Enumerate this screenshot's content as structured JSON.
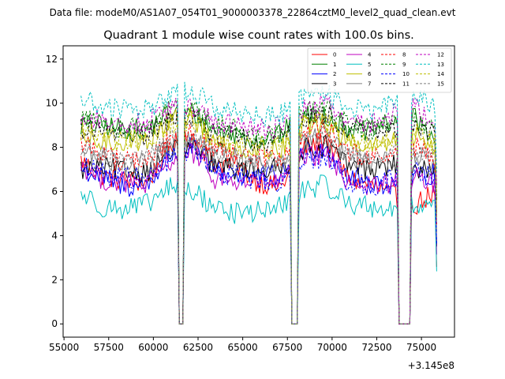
{
  "chart_data": {
    "type": "line",
    "suptitle": "Data file: modeM0/AS1A07_054T01_9000003378_22864cztM0_level2_quad_clean.evt",
    "title": "Quadrant 1 module wise count rates with 100.0s bins.",
    "xlabel": "",
    "ylabel": "",
    "x_offset_label": "+3.145e8",
    "x_range": [
      55950,
      75850
    ],
    "x_step": 100,
    "xlim": [
      54950,
      76850
    ],
    "ylim": [
      -0.6,
      12.6
    ],
    "x_ticks": [
      55000,
      57500,
      60000,
      62500,
      65000,
      67500,
      70000,
      72500,
      75000
    ],
    "y_ticks": [
      0,
      2,
      4,
      6,
      8,
      10,
      12
    ],
    "gaps": [
      {
        "from": 61350,
        "to": 61750
      },
      {
        "from": 67650,
        "to": 68150
      },
      {
        "from": 73650,
        "to": 74450
      }
    ],
    "legend_position": "top-right",
    "legend_columns": 4,
    "series": [
      {
        "name": "0",
        "color": "#ff0000",
        "style": "solid",
        "base": [
          7.4,
          6.7,
          6.5,
          6.4,
          8.1,
          8.5,
          7.3,
          7.2,
          6.4,
          6.2,
          7.9,
          8.4,
          6.6,
          6.3,
          5.8,
          5.4,
          6.0
        ]
      },
      {
        "name": "1",
        "color": "#008000",
        "style": "solid",
        "base": [
          9.0,
          9.0,
          8.8,
          8.8,
          9.6,
          9.6,
          8.8,
          8.6,
          8.3,
          8.6,
          9.4,
          9.5,
          8.9,
          8.7,
          9.2,
          9.3,
          8.4
        ]
      },
      {
        "name": "2",
        "color": "#0000ff",
        "style": "solid",
        "base": [
          7.0,
          6.6,
          6.2,
          6.3,
          7.6,
          8.0,
          7.0,
          6.7,
          6.7,
          6.7,
          7.8,
          8.0,
          6.7,
          6.4,
          6.3,
          6.5,
          6.9
        ]
      },
      {
        "name": "3",
        "color": "#000000",
        "style": "solid",
        "base": [
          7.0,
          7.1,
          6.9,
          6.9,
          7.8,
          8.0,
          7.2,
          7.0,
          7.0,
          7.0,
          7.9,
          8.1,
          7.2,
          7.0,
          7.2,
          7.0,
          6.8
        ]
      },
      {
        "name": "4",
        "color": "#bf00bf",
        "style": "solid",
        "base": [
          7.2,
          6.5,
          6.4,
          6.3,
          7.4,
          7.8,
          6.6,
          6.4,
          6.4,
          6.4,
          7.5,
          7.7,
          6.5,
          6.2,
          6.4,
          6.6,
          6.4
        ]
      },
      {
        "name": "5",
        "color": "#00bfbf",
        "style": "solid",
        "base": [
          5.9,
          5.3,
          5.2,
          5.4,
          6.2,
          6.0,
          5.3,
          5.0,
          5.1,
          5.3,
          6.1,
          6.3,
          5.5,
          5.3,
          5.2,
          5.3,
          5.6
        ]
      },
      {
        "name": "6",
        "color": "#bfbf00",
        "style": "solid",
        "base": [
          8.4,
          8.2,
          8.3,
          8.3,
          9.2,
          9.4,
          8.2,
          8.0,
          7.9,
          8.0,
          9.0,
          9.1,
          8.2,
          8.0,
          8.2,
          8.5,
          8.0
        ]
      },
      {
        "name": "7",
        "color": "#808080",
        "style": "solid",
        "base": [
          7.8,
          7.5,
          7.3,
          7.2,
          8.0,
          8.3,
          7.7,
          7.5,
          7.3,
          7.4,
          8.3,
          8.5,
          7.5,
          7.3,
          7.4,
          7.6,
          7.3
        ]
      },
      {
        "name": "8",
        "color": "#ff0000",
        "style": "dashed",
        "base": [
          8.2,
          7.7,
          7.4,
          7.4,
          8.4,
          8.7,
          7.8,
          7.6,
          7.5,
          7.5,
          8.6,
          8.9,
          7.8,
          7.5,
          7.6,
          8.0,
          7.6
        ]
      },
      {
        "name": "9",
        "color": "#008000",
        "style": "dashed",
        "base": [
          9.4,
          9.0,
          8.9,
          8.9,
          9.7,
          9.8,
          9.0,
          8.8,
          8.6,
          8.7,
          9.6,
          9.7,
          9.0,
          8.8,
          9.0,
          9.2,
          8.6
        ]
      },
      {
        "name": "10",
        "color": "#0000ff",
        "style": "dashed",
        "base": [
          7.1,
          6.8,
          6.6,
          6.6,
          7.5,
          7.8,
          6.9,
          6.7,
          6.5,
          6.4,
          7.4,
          7.6,
          6.5,
          6.2,
          6.6,
          6.9,
          6.6
        ]
      },
      {
        "name": "11",
        "color": "#000000",
        "style": "dashed",
        "base": [
          8.9,
          8.7,
          8.6,
          8.5,
          9.3,
          9.4,
          8.6,
          8.4,
          8.3,
          8.4,
          9.3,
          9.5,
          8.8,
          8.6,
          8.9,
          9.1,
          8.6
        ]
      },
      {
        "name": "12",
        "color": "#bf00bf",
        "style": "dashed",
        "base": [
          9.3,
          9.2,
          9.1,
          9.1,
          9.8,
          9.9,
          9.1,
          9.0,
          8.8,
          8.9,
          9.7,
          9.9,
          9.3,
          9.1,
          9.5,
          9.8,
          9.2
        ]
      },
      {
        "name": "13",
        "color": "#00bfbf",
        "style": "dashed",
        "base": [
          10.2,
          9.8,
          9.7,
          9.7,
          10.4,
          10.6,
          9.8,
          9.6,
          9.4,
          9.5,
          10.3,
          10.5,
          9.8,
          9.6,
          10.0,
          10.3,
          9.8
        ]
      },
      {
        "name": "14",
        "color": "#bfbf00",
        "style": "dashed",
        "base": [
          8.8,
          8.4,
          8.3,
          8.2,
          9.1,
          9.2,
          8.4,
          8.2,
          8.0,
          8.1,
          9.0,
          9.2,
          8.3,
          8.1,
          8.4,
          8.7,
          8.1
        ]
      },
      {
        "name": "15",
        "color": "#808080",
        "style": "dashed",
        "base": [
          8.0,
          7.6,
          7.5,
          7.5,
          8.3,
          8.5,
          7.7,
          7.5,
          7.3,
          7.4,
          8.3,
          8.5,
          7.6,
          7.4,
          7.6,
          7.9,
          7.4
        ]
      }
    ]
  }
}
